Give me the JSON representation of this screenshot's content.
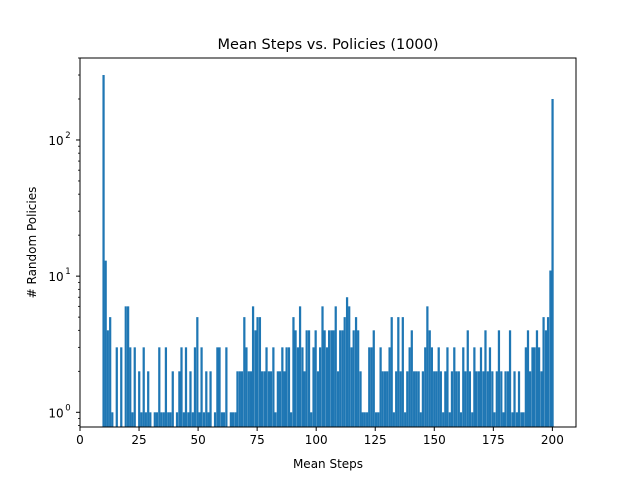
{
  "chart_data": {
    "type": "bar",
    "title": "Mean Steps vs. Policies (1000)",
    "xlabel": "Mean Steps",
    "ylabel": "# Random Policies",
    "xlim": [
      0,
      210
    ],
    "ylim": [
      0.78,
      400
    ],
    "yscale": "log",
    "grid": false,
    "bar_color": "#1f77b4",
    "bin_width": 0.95,
    "x_ticks": [
      0,
      25,
      50,
      75,
      100,
      125,
      150,
      175,
      200
    ],
    "y_ticks": [
      {
        "value": 1,
        "base": "10",
        "exp": "0"
      },
      {
        "value": 10,
        "base": "10",
        "exp": "1"
      },
      {
        "value": 100,
        "base": "10",
        "exp": "2"
      }
    ],
    "bins": [
      [
        9.5,
        300
      ],
      [
        10.4,
        13
      ],
      [
        11.3,
        4
      ],
      [
        12.3,
        5
      ],
      [
        13.2,
        1
      ],
      [
        15.1,
        3
      ],
      [
        17.0,
        3
      ],
      [
        18.9,
        6
      ],
      [
        19.9,
        6
      ],
      [
        20.8,
        3
      ],
      [
        21.7,
        1
      ],
      [
        22.7,
        3
      ],
      [
        24.6,
        2
      ],
      [
        25.5,
        1
      ],
      [
        26.5,
        3
      ],
      [
        27.4,
        1
      ],
      [
        28.4,
        2
      ],
      [
        29.3,
        1
      ],
      [
        31.2,
        1
      ],
      [
        32.1,
        1
      ],
      [
        33.1,
        3
      ],
      [
        34.0,
        1
      ],
      [
        35.0,
        1
      ],
      [
        35.9,
        3
      ],
      [
        36.9,
        1
      ],
      [
        37.8,
        1
      ],
      [
        38.8,
        2
      ],
      [
        40.6,
        1
      ],
      [
        41.6,
        2
      ],
      [
        42.5,
        3
      ],
      [
        43.5,
        1
      ],
      [
        44.4,
        3
      ],
      [
        45.4,
        1
      ],
      [
        46.3,
        2
      ],
      [
        47.3,
        1
      ],
      [
        48.2,
        3
      ],
      [
        49.2,
        5
      ],
      [
        50.1,
        1
      ],
      [
        51.0,
        3
      ],
      [
        52.0,
        1
      ],
      [
        53.0,
        2
      ],
      [
        53.9,
        1
      ],
      [
        54.8,
        2
      ],
      [
        56.7,
        1
      ],
      [
        57.7,
        3
      ],
      [
        58.6,
        3
      ],
      [
        59.6,
        1
      ],
      [
        60.5,
        1
      ],
      [
        61.5,
        3
      ],
      [
        63.4,
        1
      ],
      [
        64.3,
        1
      ],
      [
        65.3,
        1
      ],
      [
        66.2,
        2
      ],
      [
        67.2,
        2
      ],
      [
        68.1,
        2
      ],
      [
        69.1,
        5
      ],
      [
        70.0,
        3
      ],
      [
        71.0,
        2
      ],
      [
        71.9,
        2
      ],
      [
        72.8,
        6
      ],
      [
        73.8,
        4
      ],
      [
        74.7,
        5
      ],
      [
        75.7,
        5
      ],
      [
        76.6,
        2
      ],
      [
        77.6,
        2
      ],
      [
        78.5,
        3
      ],
      [
        79.5,
        2
      ],
      [
        80.4,
        2
      ],
      [
        81.4,
        3
      ],
      [
        82.3,
        1
      ],
      [
        83.3,
        2
      ],
      [
        84.2,
        2
      ],
      [
        85.2,
        3
      ],
      [
        86.1,
        2
      ],
      [
        87.0,
        3
      ],
      [
        88.0,
        3
      ],
      [
        88.9,
        1
      ],
      [
        89.9,
        5
      ],
      [
        90.8,
        4
      ],
      [
        91.8,
        3
      ],
      [
        92.7,
        6
      ],
      [
        93.7,
        3
      ],
      [
        94.6,
        2
      ],
      [
        95.5,
        4
      ],
      [
        96.5,
        4
      ],
      [
        97.4,
        1
      ],
      [
        98.4,
        3
      ],
      [
        99.3,
        4
      ],
      [
        100.3,
        2
      ],
      [
        101.2,
        3
      ],
      [
        102.2,
        6
      ],
      [
        103.1,
        4
      ],
      [
        104.1,
        3
      ],
      [
        105.0,
        4
      ],
      [
        106.0,
        4
      ],
      [
        106.9,
        4
      ],
      [
        107.8,
        6
      ],
      [
        108.8,
        2
      ],
      [
        109.7,
        4
      ],
      [
        110.7,
        4
      ],
      [
        111.6,
        5
      ],
      [
        112.6,
        7
      ],
      [
        113.5,
        6
      ],
      [
        114.5,
        3
      ],
      [
        115.4,
        4
      ],
      [
        116.4,
        5
      ],
      [
        117.3,
        4
      ],
      [
        118.3,
        2
      ],
      [
        119.2,
        1
      ],
      [
        120.1,
        1
      ],
      [
        121.1,
        1
      ],
      [
        122.0,
        3
      ],
      [
        123.0,
        3
      ],
      [
        123.9,
        4
      ],
      [
        124.9,
        1
      ],
      [
        125.8,
        1
      ],
      [
        126.8,
        3
      ],
      [
        127.7,
        2
      ],
      [
        128.7,
        2
      ],
      [
        129.6,
        2
      ],
      [
        130.6,
        3
      ],
      [
        131.5,
        5
      ],
      [
        132.4,
        1
      ],
      [
        133.4,
        2
      ],
      [
        134.3,
        5
      ],
      [
        135.3,
        2
      ],
      [
        136.2,
        5
      ],
      [
        137.2,
        1
      ],
      [
        138.1,
        2
      ],
      [
        139.1,
        3
      ],
      [
        140.0,
        4
      ],
      [
        141.0,
        2
      ],
      [
        141.9,
        2
      ],
      [
        142.9,
        2
      ],
      [
        143.8,
        1
      ],
      [
        144.7,
        2
      ],
      [
        145.7,
        3
      ],
      [
        146.6,
        6
      ],
      [
        147.6,
        4
      ],
      [
        148.5,
        3
      ],
      [
        149.5,
        2
      ],
      [
        150.4,
        2
      ],
      [
        151.4,
        3
      ],
      [
        152.3,
        2
      ],
      [
        153.3,
        1
      ],
      [
        154.2,
        2
      ],
      [
        155.1,
        3
      ],
      [
        156.1,
        1
      ],
      [
        157.0,
        2
      ],
      [
        158.0,
        3
      ],
      [
        158.9,
        2
      ],
      [
        159.9,
        2
      ],
      [
        160.8,
        1
      ],
      [
        161.8,
        3
      ],
      [
        162.7,
        2
      ],
      [
        163.7,
        4
      ],
      [
        164.6,
        2
      ],
      [
        165.6,
        1
      ],
      [
        166.5,
        3
      ],
      [
        167.4,
        2
      ],
      [
        168.4,
        2
      ],
      [
        169.3,
        3
      ],
      [
        170.3,
        2
      ],
      [
        171.2,
        4
      ],
      [
        172.2,
        2
      ],
      [
        173.1,
        3
      ],
      [
        174.1,
        2
      ],
      [
        175.0,
        1
      ],
      [
        176.0,
        2
      ],
      [
        176.9,
        4
      ],
      [
        177.9,
        2
      ],
      [
        178.8,
        1
      ],
      [
        179.7,
        2
      ],
      [
        180.7,
        2
      ],
      [
        181.6,
        4
      ],
      [
        182.6,
        1
      ],
      [
        183.5,
        2
      ],
      [
        184.5,
        1
      ],
      [
        185.4,
        2
      ],
      [
        186.4,
        1
      ],
      [
        187.3,
        1
      ],
      [
        188.3,
        3
      ],
      [
        189.2,
        4
      ],
      [
        190.1,
        2
      ],
      [
        191.1,
        3
      ],
      [
        192.0,
        3
      ],
      [
        193.0,
        4
      ],
      [
        193.9,
        3
      ],
      [
        194.9,
        2
      ],
      [
        195.8,
        5
      ],
      [
        196.8,
        4
      ],
      [
        197.7,
        5
      ],
      [
        198.7,
        11
      ],
      [
        199.6,
        200
      ]
    ]
  }
}
